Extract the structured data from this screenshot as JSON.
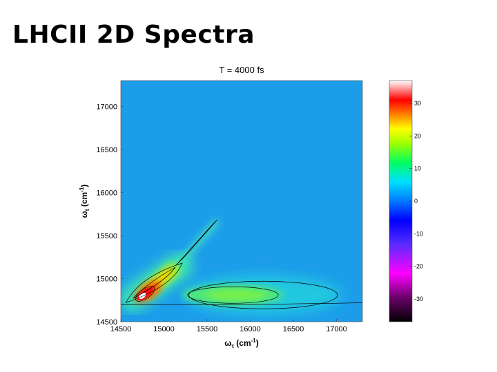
{
  "slide": {
    "title": "LHCII 2D Spectra"
  },
  "chart_data": {
    "type": "heatmap",
    "title": "T = 4000 fs",
    "xlabel": {
      "symbol": "ω",
      "sub": "τ",
      "unit": " (cm",
      "sup": "-1",
      "close": ")"
    },
    "ylabel": {
      "symbol": "ω",
      "sub": "t",
      "unit": " (cm",
      "sup": "-1",
      "close": ")"
    },
    "xlim": [
      14500,
      17300
    ],
    "ylim": [
      14500,
      17300
    ],
    "xticks": [
      14500,
      15000,
      15500,
      16000,
      16500,
      17000
    ],
    "yticks": [
      14500,
      15000,
      15500,
      16000,
      16500,
      17000
    ],
    "background_value": 2,
    "features": [
      {
        "name": "diagonal-peak",
        "x": 14750,
        "y": 14800,
        "peak": 34
      },
      {
        "name": "diagonal-ridge",
        "from": [
          14800,
          14850
        ],
        "to": [
          15100,
          15100
        ],
        "peak": 24
      },
      {
        "name": "cross-peak-band",
        "x": 15800,
        "y": 14810,
        "peak": 13,
        "x_extent": [
          15400,
          16900
        ]
      },
      {
        "name": "upper-arm",
        "from": [
          15200,
          15200
        ],
        "to": [
          15600,
          15650
        ],
        "peak": 7
      }
    ],
    "colorbar": {
      "ticks": [
        30,
        20,
        10,
        0,
        -10,
        -20,
        -30
      ],
      "tick_labels": [
        "30",
        "20",
        "10",
        "0",
        "-10",
        "-20",
        "-30"
      ],
      "range": [
        -37,
        37
      ]
    }
  }
}
